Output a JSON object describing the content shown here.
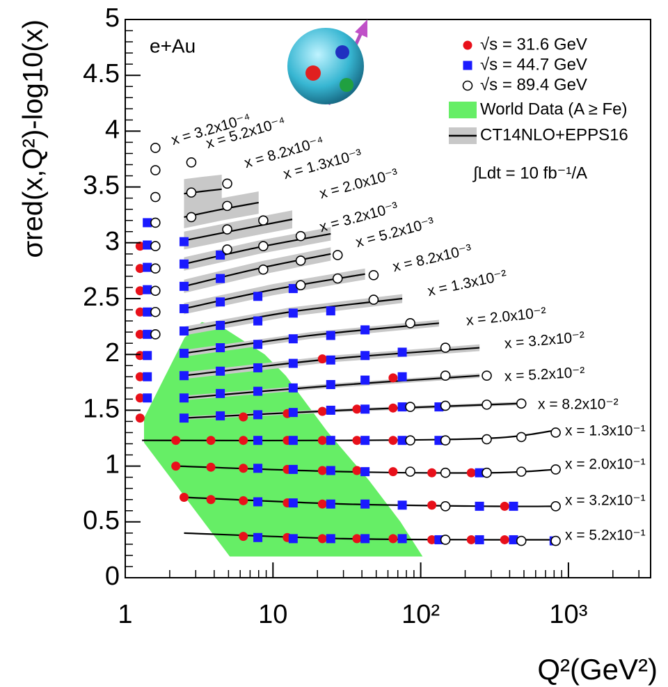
{
  "chart_data": {
    "type": "scatter",
    "x_label": "Q²(GeV²)",
    "y_label": "σred(x,Q²)-log10(x)",
    "annotation": "e+Au",
    "luminosity": "∫Ldt = 10 fb⁻¹/A",
    "log_x": true,
    "legend_position": "upper right",
    "xlim": [
      1,
      3600
    ],
    "ylim": [
      0,
      5
    ],
    "xticks": [
      1,
      10,
      {
        "value": 100,
        "label": "10²"
      },
      {
        "value": 1000,
        "label": "10³"
      }
    ],
    "yticks": [
      0,
      0.5,
      1,
      1.5,
      2,
      2.5,
      3,
      3.5,
      4,
      4.5,
      5
    ],
    "series": [
      {
        "name": "√s = 31.6 GeV",
        "color": "#e8101a",
        "marker": "circle",
        "x": [
          1.26,
          1.26,
          1.26,
          1.26,
          1.26,
          1.26,
          1.26,
          1.26,
          1.26,
          2.2,
          2.2,
          2.5,
          3.8,
          3.8,
          3.8,
          6.3,
          6.3,
          6.3,
          6.3,
          6.3,
          12.5,
          12.5,
          12.5,
          12.5,
          12.5,
          21.6,
          21.6,
          21.6,
          21.6,
          21.6,
          21.6,
          37,
          37,
          37,
          37,
          65,
          65,
          65,
          65,
          65,
          119,
          119,
          119,
          220,
          220,
          370,
          370
        ],
        "values": [
          2.97,
          2.77,
          2.57,
          2.38,
          2.18,
          1.99,
          1.8,
          1.61,
          1.43,
          1.23,
          1.0,
          0.72,
          1.23,
          0.99,
          0.7,
          1.44,
          1.23,
          0.98,
          0.69,
          0.37,
          1.47,
          1.23,
          0.97,
          0.67,
          0.36,
          1.96,
          1.49,
          1.23,
          0.96,
          0.66,
          0.35,
          1.51,
          1.23,
          0.96,
          0.35,
          1.79,
          1.52,
          1.23,
          0.95,
          0.35,
          0.94,
          0.65,
          0.34,
          0.94,
          0.34,
          0.64,
          0.34
        ]
      },
      {
        "name": "√s = 44.7 GeV",
        "color": "#1a1aff",
        "marker": "square",
        "x": [
          1.41,
          1.41,
          1.41,
          1.41,
          1.41,
          1.41,
          1.41,
          1.41,
          1.41,
          2.5,
          2.5,
          2.5,
          2.5,
          2.5,
          2.5,
          2.5,
          2.5,
          2.5,
          4.4,
          4.4,
          4.4,
          4.4,
          4.4,
          4.4,
          4.4,
          4.4,
          7.9,
          7.9,
          7.9,
          7.9,
          7.9,
          7.9,
          7.9,
          7.9,
          7.9,
          7.9,
          13.7,
          13.7,
          13.7,
          13.7,
          13.7,
          13.7,
          13.7,
          13.7,
          13.7,
          13.7,
          24.6,
          24.6,
          24.6,
          24.6,
          24.6,
          24.6,
          24.6,
          24.6,
          24.6,
          42,
          42,
          42,
          42,
          42,
          42,
          42,
          42,
          75,
          75,
          75,
          75,
          75,
          75,
          133,
          133,
          133,
          250,
          250,
          250,
          425,
          425,
          800
        ],
        "values": [
          3.18,
          2.98,
          2.78,
          2.58,
          2.38,
          2.18,
          1.99,
          1.8,
          1.61,
          3.01,
          2.81,
          2.61,
          2.41,
          2.21,
          2.01,
          1.81,
          1.61,
          1.43,
          2.89,
          2.68,
          2.47,
          2.26,
          2.06,
          1.85,
          1.65,
          1.45,
          2.52,
          2.3,
          2.09,
          1.88,
          1.67,
          1.46,
          1.23,
          0.98,
          0.68,
          0.36,
          2.59,
          2.37,
          2.14,
          1.92,
          1.7,
          1.48,
          1.23,
          0.97,
          0.67,
          0.35,
          2.39,
          2.17,
          1.95,
          1.73,
          1.5,
          1.23,
          0.96,
          0.66,
          0.35,
          2.22,
          1.99,
          1.77,
          1.51,
          1.23,
          0.95,
          0.66,
          0.35,
          2.02,
          1.8,
          1.53,
          1.23,
          0.65,
          0.35,
          1.53,
          1.23,
          0.34,
          0.94,
          0.64,
          0.34,
          0.64,
          0.34,
          0.33
        ]
      },
      {
        "name": "√s = 89.4 GeV",
        "color": "#000000",
        "marker": "open-circle",
        "x": [
          1.6,
          1.6,
          1.6,
          1.6,
          1.6,
          1.6,
          1.6,
          1.6,
          1.6,
          2.8,
          2.8,
          2.8,
          4.9,
          4.9,
          4.9,
          4.9,
          8.6,
          8.6,
          8.6,
          15.4,
          15.4,
          15.4,
          27.4,
          27.4,
          48,
          48,
          85,
          85,
          85,
          85,
          147,
          147,
          147,
          147,
          147,
          147,
          147,
          280,
          280,
          280,
          280,
          480,
          480,
          480,
          480,
          820,
          820,
          820,
          820
        ],
        "values": [
          3.85,
          3.65,
          3.41,
          3.18,
          2.97,
          2.77,
          2.57,
          2.38,
          2.18,
          3.72,
          3.45,
          3.23,
          3.53,
          3.33,
          3.12,
          2.94,
          3.2,
          2.97,
          2.76,
          3.06,
          2.84,
          2.62,
          2.89,
          2.68,
          2.71,
          2.49,
          2.28,
          1.53,
          1.23,
          0.95,
          2.06,
          1.81,
          1.54,
          1.23,
          0.94,
          0.64,
          0.34,
          1.81,
          1.55,
          1.24,
          0.94,
          1.56,
          1.26,
          0.95,
          0.33,
          1.3,
          0.97,
          0.64,
          0.33
        ]
      }
    ],
    "world_data": {
      "name": "World Data (A ≥ Fe)",
      "color": "#66ee66",
      "x": [
        1.34,
        1.34,
        1.82,
        2.52,
        3.3,
        4.6,
        8.8,
        12.2,
        23.3,
        44.8,
        73,
        103,
        5.1
      ],
      "values": [
        1.21,
        1.43,
        1.78,
        2.15,
        2.29,
        2.24,
        2.0,
        1.81,
        1.31,
        0.87,
        0.5,
        0.19,
        0.19
      ]
    },
    "model": {
      "name": "CT14NLO+EPPS16",
      "color": "#000000",
      "band_color": "#c8c8c8",
      "curves": [
        {
          "label": "x = 3.2x10⁻⁴"
        },
        {
          "label": "x = 5.2x10⁻⁴"
        },
        {
          "label": "x = 8.2x10⁻⁴",
          "x": [
            2.5,
            3.3,
            4.5
          ],
          "values": [
            3.44,
            3.46,
            3.48
          ],
          "band": 0.13
        },
        {
          "label": "x = 1.3x10⁻³",
          "x": [
            2.5,
            4.5,
            8
          ],
          "values": [
            3.23,
            3.3,
            3.36
          ],
          "band": 0.1
        },
        {
          "label": "x = 2.0x10⁻³",
          "x": [
            2.5,
            6,
            13.5
          ],
          "values": [
            3.02,
            3.12,
            3.21
          ],
          "band": 0.08
        },
        {
          "label": "x = 3.2x10⁻³",
          "x": [
            2.5,
            8,
            24.6
          ],
          "values": [
            2.81,
            2.96,
            3.08
          ],
          "band": 0.06
        },
        {
          "label": "x = 5.2x10⁻³",
          "x": [
            2.5,
            8,
            24.6
          ],
          "values": [
            2.61,
            2.77,
            2.9
          ],
          "band": 0.06
        },
        {
          "label": "x = 8.2x10⁻³",
          "x": [
            2.5,
            10,
            42
          ],
          "values": [
            2.41,
            2.58,
            2.72
          ],
          "band": 0.05
        },
        {
          "label": "x = 1.3x10⁻²",
          "x": [
            2.5,
            13,
            75
          ],
          "values": [
            2.21,
            2.38,
            2.5
          ],
          "band": 0.04
        },
        {
          "label": "x = 2.0x10⁻²",
          "x": [
            2.5,
            18,
            133
          ],
          "values": [
            2.01,
            2.17,
            2.28
          ],
          "band": 0.03
        },
        {
          "label": "x = 3.2x10⁻²",
          "x": [
            2.5,
            25,
            250
          ],
          "values": [
            1.81,
            1.96,
            2.06
          ],
          "band": 0.03
        },
        {
          "label": "x = 5.2x10⁻²",
          "x": [
            2.5,
            25,
            250
          ],
          "values": [
            1.61,
            1.72,
            1.81
          ],
          "band": 0.02
        },
        {
          "label": "x = 8.2x10⁻²",
          "x": [
            2.5,
            30,
            460
          ],
          "values": [
            1.43,
            1.5,
            1.56
          ],
          "band": 0.015
        },
        {
          "label": "x = 1.3x10⁻¹",
          "x": [
            1.3,
            30,
            300,
            820
          ],
          "values": [
            1.23,
            1.23,
            1.25,
            1.32
          ]
        },
        {
          "label": "x = 2.0x10⁻¹",
          "x": [
            2.2,
            30,
            300,
            820
          ],
          "values": [
            1.0,
            0.95,
            0.94,
            0.97
          ]
        },
        {
          "label": "x = 3.2x10⁻¹",
          "x": [
            2.5,
            30,
            300,
            820
          ],
          "values": [
            0.72,
            0.66,
            0.64,
            0.64
          ]
        },
        {
          "label": "x = 5.2x10⁻¹",
          "x": [
            2.5,
            30,
            300,
            800
          ],
          "values": [
            0.4,
            0.35,
            0.34,
            0.34
          ]
        }
      ]
    }
  }
}
